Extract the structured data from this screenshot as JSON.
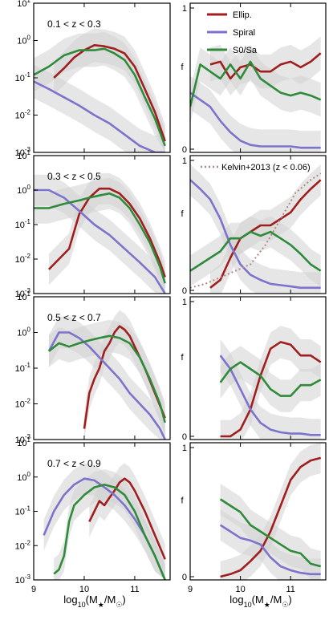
{
  "colors": {
    "ellip": "#a01e1e",
    "spiral": "#7b73cc",
    "s0sa": "#2e8b3a",
    "band": "#d2d2d2",
    "kelvin": "#b08a80"
  },
  "legend_left": {
    "entries": [
      {
        "key": "ellip",
        "label": "Ellip."
      },
      {
        "key": "spiral",
        "label": "Spiral"
      },
      {
        "key": "s0sa",
        "label": "S0/Sa"
      }
    ]
  },
  "legend_kelvin": "Kelvin+2013 (z < 0.06)",
  "left_xlabel": "log10(M⋆/M☉)",
  "right_xlabel": "log10(M⋆/M☉)",
  "right_ylabel": "f",
  "chart_data": [
    {
      "type": "line",
      "panel": "left",
      "row": 0,
      "label": "0.1 < z < 0.3",
      "yscale": "log",
      "xlim": [
        9,
        11.7
      ],
      "ylim": [
        0.001,
        10
      ],
      "series": [
        {
          "key": "ellip",
          "x": [
            9.4,
            9.6,
            9.8,
            10.0,
            10.2,
            10.4,
            10.6,
            10.8,
            11.0,
            11.2,
            11.4,
            11.6
          ],
          "y": [
            0.1,
            0.18,
            0.35,
            0.55,
            0.75,
            0.7,
            0.6,
            0.45,
            0.2,
            0.05,
            0.012,
            0.002
          ]
        },
        {
          "key": "spiral",
          "x": [
            9.0,
            9.3,
            9.6,
            9.9,
            10.2,
            10.5,
            10.8,
            11.1,
            11.4,
            11.6
          ],
          "y": [
            0.08,
            0.05,
            0.03,
            0.018,
            0.01,
            0.006,
            0.003,
            0.0015,
            0.001,
            0.001
          ]
        },
        {
          "key": "s0sa",
          "x": [
            9.0,
            9.3,
            9.6,
            9.9,
            10.2,
            10.4,
            10.6,
            10.8,
            11.0,
            11.2,
            11.4,
            11.6
          ],
          "y": [
            0.12,
            0.2,
            0.4,
            0.55,
            0.55,
            0.6,
            0.45,
            0.3,
            0.12,
            0.03,
            0.008,
            0.0015
          ]
        }
      ]
    },
    {
      "type": "line",
      "panel": "left",
      "row": 1,
      "label": "0.3 < z < 0.5",
      "yscale": "log",
      "xlim": [
        9,
        11.7
      ],
      "ylim": [
        0.001,
        10
      ],
      "series": [
        {
          "key": "ellip",
          "x": [
            9.3,
            9.5,
            9.7,
            9.9,
            10.1,
            10.3,
            10.5,
            10.7,
            10.9,
            11.1,
            11.3,
            11.5,
            11.6
          ],
          "y": [
            0.005,
            0.01,
            0.02,
            0.2,
            0.6,
            1.1,
            1.1,
            0.8,
            0.4,
            0.15,
            0.04,
            0.008,
            0.003
          ]
        },
        {
          "key": "spiral",
          "x": [
            9.0,
            9.3,
            9.6,
            9.9,
            10.2,
            10.5,
            10.8,
            11.1,
            11.4,
            11.6
          ],
          "y": [
            1.0,
            1.0,
            0.6,
            0.25,
            0.1,
            0.05,
            0.02,
            0.008,
            0.003,
            0.001
          ]
        },
        {
          "key": "s0sa",
          "x": [
            9.0,
            9.3,
            9.6,
            9.9,
            10.1,
            10.3,
            10.5,
            10.7,
            10.9,
            11.1,
            11.3,
            11.5,
            11.6
          ],
          "y": [
            0.3,
            0.3,
            0.4,
            0.5,
            0.6,
            0.7,
            0.8,
            0.6,
            0.3,
            0.1,
            0.03,
            0.006,
            0.002
          ]
        }
      ]
    },
    {
      "type": "line",
      "panel": "left",
      "row": 2,
      "label": "0.5 < z < 0.7",
      "yscale": "log",
      "xlim": [
        9,
        11.7
      ],
      "ylim": [
        0.001,
        10
      ],
      "series": [
        {
          "key": "ellip",
          "x": [
            10.0,
            10.1,
            10.2,
            10.3,
            10.4,
            10.5,
            10.6,
            10.7,
            10.8,
            10.9,
            11.0,
            11.2,
            11.4,
            11.6
          ],
          "y": [
            0.002,
            0.02,
            0.05,
            0.1,
            0.3,
            0.5,
            1.0,
            1.5,
            1.2,
            0.8,
            0.4,
            0.1,
            0.02,
            0.004
          ]
        },
        {
          "key": "spiral",
          "x": [
            9.3,
            9.5,
            9.7,
            9.9,
            10.1,
            10.3,
            10.5,
            10.7,
            10.9,
            11.1,
            11.3,
            11.5,
            11.6
          ],
          "y": [
            0.3,
            1.0,
            1.0,
            0.7,
            0.4,
            0.2,
            0.1,
            0.05,
            0.02,
            0.01,
            0.005,
            0.002,
            0.001
          ]
        },
        {
          "key": "s0sa",
          "x": [
            9.3,
            9.5,
            9.7,
            9.9,
            10.1,
            10.3,
            10.5,
            10.7,
            10.9,
            11.1,
            11.3,
            11.5,
            11.6
          ],
          "y": [
            0.3,
            0.5,
            0.4,
            0.5,
            0.6,
            0.7,
            0.8,
            0.7,
            0.5,
            0.2,
            0.05,
            0.01,
            0.003
          ]
        }
      ]
    },
    {
      "type": "line",
      "panel": "left",
      "row": 3,
      "label": "0.7 < z < 0.9",
      "yscale": "log",
      "xlim": [
        9,
        11.7
      ],
      "ylim": [
        0.001,
        10
      ],
      "series": [
        {
          "key": "ellip",
          "x": [
            10.1,
            10.2,
            10.3,
            10.4,
            10.5,
            10.6,
            10.7,
            10.8,
            10.9,
            11.0,
            11.2,
            11.4,
            11.6
          ],
          "y": [
            0.05,
            0.1,
            0.2,
            0.15,
            0.25,
            0.4,
            0.7,
            0.9,
            0.7,
            0.4,
            0.1,
            0.02,
            0.004
          ]
        },
        {
          "key": "spiral",
          "x": [
            9.2,
            9.4,
            9.6,
            9.8,
            10.0,
            10.2,
            10.4,
            10.6,
            10.8,
            11.0,
            11.2,
            11.4,
            11.6
          ],
          "y": [
            0.02,
            0.1,
            0.3,
            0.6,
            0.9,
            0.8,
            0.5,
            0.3,
            0.15,
            0.06,
            0.02,
            0.005,
            0.001
          ]
        },
        {
          "key": "s0sa",
          "x": [
            9.4,
            9.5,
            9.6,
            9.7,
            9.8,
            10.0,
            10.2,
            10.4,
            10.6,
            10.8,
            11.0,
            11.2,
            11.4,
            11.6
          ],
          "y": [
            0.0015,
            0.002,
            0.005,
            0.05,
            0.15,
            0.3,
            0.5,
            0.6,
            0.5,
            0.3,
            0.1,
            0.02,
            0.005,
            0.001
          ]
        }
      ]
    },
    {
      "type": "line",
      "panel": "right",
      "row": 0,
      "yscale": "linear",
      "xlim": [
        9,
        11.7
      ],
      "ylim": [
        0,
        1
      ],
      "series": [
        {
          "key": "ellip",
          "x": [
            9.4,
            9.6,
            9.8,
            10.0,
            10.2,
            10.4,
            10.6,
            10.8,
            11.0,
            11.2,
            11.4,
            11.6
          ],
          "y": [
            0.6,
            0.62,
            0.5,
            0.58,
            0.6,
            0.55,
            0.55,
            0.6,
            0.62,
            0.58,
            0.62,
            0.68
          ]
        },
        {
          "key": "spiral",
          "x": [
            9.0,
            9.2,
            9.4,
            9.6,
            9.8,
            10.0,
            10.2,
            10.4,
            10.6,
            10.8,
            11.0,
            11.2,
            11.4,
            11.6
          ],
          "y": [
            0.4,
            0.35,
            0.3,
            0.2,
            0.12,
            0.06,
            0.03,
            0.02,
            0.02,
            0.02,
            0.02,
            0.01,
            0.01,
            0.01
          ]
        },
        {
          "key": "s0sa",
          "x": [
            9.0,
            9.2,
            9.4,
            9.6,
            9.8,
            10.0,
            10.2,
            10.4,
            10.6,
            10.8,
            11.0,
            11.2,
            11.4,
            11.6
          ],
          "y": [
            0.3,
            0.6,
            0.55,
            0.5,
            0.6,
            0.5,
            0.62,
            0.5,
            0.45,
            0.4,
            0.38,
            0.4,
            0.38,
            0.35
          ]
        }
      ]
    },
    {
      "type": "line",
      "panel": "right",
      "row": 1,
      "yscale": "linear",
      "xlim": [
        9,
        11.7
      ],
      "ylim": [
        0,
        1
      ],
      "series": [
        {
          "key": "ellip",
          "x": [
            9.4,
            9.6,
            9.8,
            10.0,
            10.2,
            10.4,
            10.6,
            10.8,
            11.0,
            11.2,
            11.4,
            11.6
          ],
          "y": [
            0.02,
            0.08,
            0.25,
            0.4,
            0.45,
            0.5,
            0.5,
            0.55,
            0.6,
            0.7,
            0.78,
            0.85
          ]
        },
        {
          "key": "spiral",
          "x": [
            9.0,
            9.2,
            9.4,
            9.6,
            9.8,
            10.0,
            10.2,
            10.4,
            10.6,
            10.8,
            11.0,
            11.2,
            11.4,
            11.6
          ],
          "y": [
            0.85,
            0.78,
            0.7,
            0.55,
            0.35,
            0.2,
            0.12,
            0.08,
            0.05,
            0.04,
            0.03,
            0.02,
            0.02,
            0.02
          ]
        },
        {
          "key": "s0sa",
          "x": [
            9.0,
            9.2,
            9.4,
            9.6,
            9.8,
            10.0,
            10.2,
            10.4,
            10.6,
            10.8,
            11.0,
            11.2,
            11.4,
            11.6
          ],
          "y": [
            0.15,
            0.2,
            0.25,
            0.3,
            0.4,
            0.4,
            0.45,
            0.42,
            0.45,
            0.4,
            0.35,
            0.28,
            0.2,
            0.15
          ]
        },
        {
          "key": "kelvin",
          "x": [
            9.0,
            9.3,
            9.6,
            9.9,
            10.2,
            10.5,
            10.8,
            11.1,
            11.4,
            11.6
          ],
          "y": [
            0.02,
            0.05,
            0.1,
            0.15,
            0.2,
            0.35,
            0.55,
            0.75,
            0.85,
            0.9
          ]
        }
      ]
    },
    {
      "type": "line",
      "panel": "right",
      "row": 2,
      "yscale": "linear",
      "xlim": [
        9,
        11.7
      ],
      "ylim": [
        0,
        1
      ],
      "series": [
        {
          "key": "ellip",
          "x": [
            9.6,
            9.8,
            10.0,
            10.2,
            10.4,
            10.6,
            10.8,
            11.0,
            11.2,
            11.4,
            11.6
          ],
          "y": [
            0.0,
            0.0,
            0.05,
            0.2,
            0.45,
            0.65,
            0.7,
            0.68,
            0.6,
            0.6,
            0.55
          ]
        },
        {
          "key": "spiral",
          "x": [
            9.6,
            9.8,
            10.0,
            10.2,
            10.4,
            10.6,
            10.8,
            11.0,
            11.2,
            11.4,
            11.6
          ],
          "y": [
            0.6,
            0.5,
            0.35,
            0.2,
            0.1,
            0.05,
            0.03,
            0.02,
            0.02,
            0.01,
            0.01
          ]
        },
        {
          "key": "s0sa",
          "x": [
            9.6,
            9.8,
            10.0,
            10.2,
            10.4,
            10.6,
            10.8,
            11.0,
            11.2,
            11.4,
            11.6
          ],
          "y": [
            0.4,
            0.5,
            0.55,
            0.5,
            0.45,
            0.35,
            0.3,
            0.3,
            0.38,
            0.38,
            0.42
          ]
        }
      ]
    },
    {
      "type": "line",
      "panel": "right",
      "row": 3,
      "yscale": "linear",
      "xlim": [
        9,
        11.7
      ],
      "ylim": [
        0,
        1
      ],
      "series": [
        {
          "key": "ellip",
          "x": [
            9.6,
            9.8,
            10.0,
            10.2,
            10.4,
            10.6,
            10.8,
            11.0,
            11.2,
            11.4,
            11.6
          ],
          "y": [
            0.0,
            0.02,
            0.05,
            0.12,
            0.2,
            0.35,
            0.55,
            0.75,
            0.85,
            0.9,
            0.92
          ]
        },
        {
          "key": "spiral",
          "x": [
            9.6,
            9.8,
            10.0,
            10.2,
            10.4,
            10.6,
            10.8,
            11.0,
            11.2,
            11.4,
            11.6
          ],
          "y": [
            0.4,
            0.35,
            0.3,
            0.28,
            0.25,
            0.15,
            0.08,
            0.05,
            0.03,
            0.02,
            0.02
          ]
        },
        {
          "key": "s0sa",
          "x": [
            9.6,
            9.8,
            10.0,
            10.2,
            10.4,
            10.6,
            10.8,
            11.0,
            11.2,
            11.4,
            11.6
          ],
          "y": [
            0.6,
            0.55,
            0.5,
            0.4,
            0.35,
            0.3,
            0.25,
            0.2,
            0.18,
            0.1,
            0.08
          ]
        }
      ]
    }
  ],
  "axes": {
    "left_yticks": [
      {
        "base": "10",
        "exp": "1",
        "value": 10
      },
      {
        "base": "10",
        "exp": "0",
        "value": 1
      },
      {
        "base": "10",
        "exp": "-1",
        "value": 0.1
      },
      {
        "base": "10",
        "exp": "-2",
        "value": 0.01
      },
      {
        "base": "10",
        "exp": "-3",
        "value": 0.001
      }
    ],
    "right_yticks": [
      {
        "label": "1",
        "value": 1
      },
      {
        "label": "0",
        "value": 0
      }
    ],
    "xticks": [
      {
        "label": "9",
        "value": 9
      },
      {
        "label": "10",
        "value": 10
      },
      {
        "label": "11",
        "value": 11
      }
    ]
  }
}
